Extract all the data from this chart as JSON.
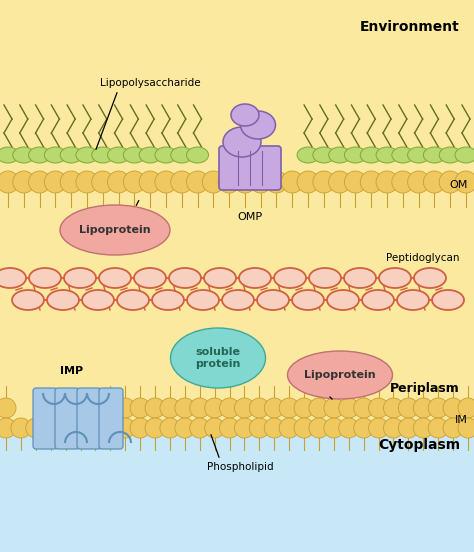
{
  "bg_color_env": "#fce9a0",
  "bg_color_periplasm": "#fce9a0",
  "bg_color_cytoplasm": "#c8e8f8",
  "om_bead_color": "#f0c860",
  "om_bead_edge": "#c8a030",
  "om_lps_color": "#b8d870",
  "om_lps_edge": "#80a830",
  "im_bead_color": "#f0c860",
  "im_bead_edge": "#c8a030",
  "peptidoglycan_color": "#d06040",
  "peptidoglycan_fill": "#f8d0c0",
  "omp_color": "#c8a8e0",
  "omp_outline": "#8060a8",
  "lipoprotein_color": "#f0a8a0",
  "lipoprotein_edge": "#c07070",
  "soluble_protein_color": "#80d8d0",
  "soluble_protein_edge": "#40a898",
  "imp_color": "#a8c8e8",
  "imp_edge": "#6090b8",
  "labels": {
    "environment": "Environment",
    "om": "OM",
    "peptidoglycan": "Peptidoglycan",
    "periplasm": "Periplasm",
    "im": "IM",
    "cytoplasm": "Cytoplasm",
    "lipopolysaccharide": "Lipopolysaccharide",
    "omp": "OMP",
    "lipoprotein_top": "Lipoprotein",
    "lipoprotein_bottom": "Lipoprotein",
    "soluble_protein": "soluble\nprotein",
    "imp": "IMP",
    "phospholipid": "Phospholipid"
  }
}
